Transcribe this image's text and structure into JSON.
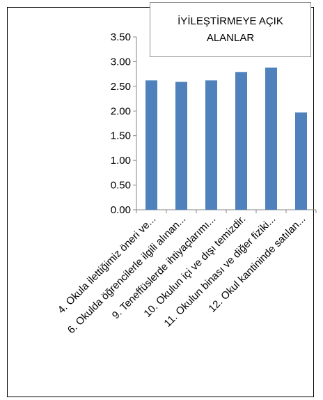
{
  "chart_data": {
    "type": "bar",
    "title": "İYİLEŞTİRMEYE AÇIK ALANLAR",
    "categories": [
      "4. Okula ilettiğimiz öneri ve...",
      "6. Okulda öğrencilerle ilgili alınan...",
      "9. Teneffüslerde ihtiyaçlarımı...",
      "10. Okulun içi ve dışı temizdir.",
      "11. Okulun binası ve diğer fiziki...",
      "12. Okul kantininde satılan..."
    ],
    "values": [
      2.62,
      2.59,
      2.62,
      2.79,
      2.88,
      1.97
    ],
    "ylim": [
      0,
      3.5
    ],
    "yticks": [
      "0.00",
      "0.50",
      "1.00",
      "1.50",
      "2.00",
      "2.50",
      "3.00",
      "3.50"
    ],
    "xlabel": "",
    "ylabel": "",
    "grid": false,
    "bar_color": "#4f81bd"
  }
}
